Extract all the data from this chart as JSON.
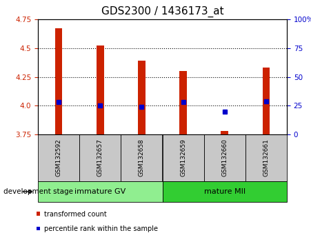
{
  "title": "GDS2300 / 1436173_at",
  "samples": [
    "GSM132592",
    "GSM132657",
    "GSM132658",
    "GSM132659",
    "GSM132660",
    "GSM132661"
  ],
  "bar_base": 3.75,
  "bar_tops": [
    4.67,
    4.52,
    4.39,
    4.3,
    3.78,
    4.33
  ],
  "percentile_pct": [
    28,
    25,
    24,
    28,
    20,
    29
  ],
  "ylim_left": [
    3.75,
    4.75
  ],
  "ylim_right": [
    0,
    100
  ],
  "yticks_left": [
    3.75,
    4.0,
    4.25,
    4.5,
    4.75
  ],
  "yticks_right": [
    0,
    25,
    50,
    75,
    100
  ],
  "ytick_labels_right": [
    "0",
    "25",
    "50",
    "75",
    "100%"
  ],
  "groups": [
    {
      "label": "immature GV",
      "start": 0,
      "end": 2,
      "color": "#90EE90"
    },
    {
      "label": "mature MII",
      "start": 3,
      "end": 5,
      "color": "#32CD32"
    }
  ],
  "bar_color": "#CC2200",
  "blue_color": "#0000CC",
  "background_xtick": "#C8C8C8",
  "title_fontsize": 11,
  "legend_red_label": "transformed count",
  "legend_blue_label": "percentile rank within the sample",
  "left_axis_color": "#CC2200",
  "right_axis_color": "#0000CC",
  "dev_stage_label": "development stage"
}
